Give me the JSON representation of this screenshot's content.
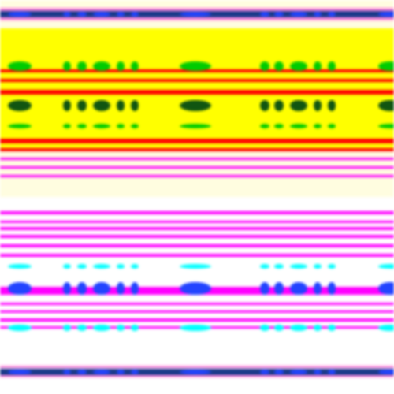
{
  "palette": {
    "background": "#ffffff",
    "cream": "#fffde0",
    "yellow": "#ffff00",
    "red": "#ff0000",
    "green": "#00cc00",
    "magenta": "#ff00ff",
    "cyan": "#00ffff",
    "blue": "#2244ff",
    "navy": "#1a3a8a",
    "pink": "#ff88dd"
  }
}
